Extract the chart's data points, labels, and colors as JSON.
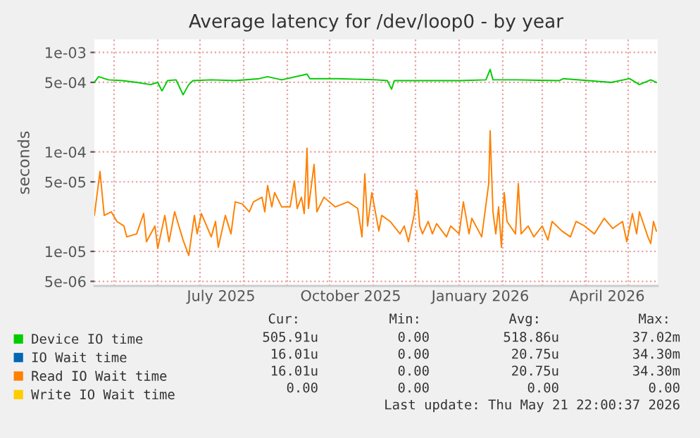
{
  "chart_data": {
    "type": "line",
    "title": "Average latency for /dev/loop0 - by year",
    "ylabel": "seconds",
    "log": "y",
    "grid": true,
    "legend": "bottom",
    "line_style": "solid",
    "marker": "none",
    "xlim": [
      "2025-04-17",
      "2026-05-22"
    ],
    "xticks": [
      {
        "value": "2025-05-01",
        "label": null
      },
      {
        "value": "2025-06-01",
        "label": null
      },
      {
        "value": "2025-07-01",
        "label": null
      },
      {
        "value": "2025-07-16",
        "label": "July 2025"
      },
      {
        "value": "2025-08-01",
        "label": null
      },
      {
        "value": "2025-09-01",
        "label": null
      },
      {
        "value": "2025-10-01",
        "label": null
      },
      {
        "value": "2025-10-16",
        "label": "October 2025"
      },
      {
        "value": "2025-11-01",
        "label": null
      },
      {
        "value": "2025-12-01",
        "label": null
      },
      {
        "value": "2026-01-01",
        "label": null
      },
      {
        "value": "2026-01-16",
        "label": "January 2026"
      },
      {
        "value": "2026-02-01",
        "label": null
      },
      {
        "value": "2026-03-01",
        "label": null
      },
      {
        "value": "2026-04-01",
        "label": null
      },
      {
        "value": "2026-04-16",
        "label": "April 2026"
      },
      {
        "value": "2026-05-01",
        "label": null
      }
    ],
    "ylim": [
      4.5e-06,
      0.00135
    ],
    "yticks": [
      {
        "value": 0.001,
        "label": "1e-03"
      },
      {
        "value": 0.0005,
        "label": "5e-04"
      },
      {
        "value": 0.0001,
        "label": "1e-04"
      },
      {
        "value": 5e-05,
        "label": "5e-05"
      },
      {
        "value": 1e-05,
        "label": "1e-05"
      },
      {
        "value": 5e-06,
        "label": "5e-06"
      }
    ],
    "series": [
      {
        "name": "Device IO time",
        "color": "#00cc00",
        "x": [
          "2025-04-17",
          "2025-04-20",
          "2025-04-27",
          "2025-05-07",
          "2025-05-17",
          "2025-05-27",
          "2025-06-01",
          "2025-06-04",
          "2025-06-08",
          "2025-06-14",
          "2025-06-19",
          "2025-06-23",
          "2025-06-26",
          "2025-07-09",
          "2025-07-26",
          "2025-08-12",
          "2025-08-18",
          "2025-08-28",
          "2025-09-15",
          "2025-09-17",
          "2025-10-07",
          "2025-11-03",
          "2025-11-11",
          "2025-11-14",
          "2025-11-16",
          "2025-12-06",
          "2026-01-02",
          "2026-01-20",
          "2026-01-23",
          "2026-01-25",
          "2026-02-11",
          "2026-03-13",
          "2026-03-16",
          "2026-04-19",
          "2026-05-02",
          "2026-05-09",
          "2026-05-17",
          "2026-05-21"
        ],
        "values": [
          0.0005,
          0.00057,
          0.00053,
          0.00052,
          0.0005,
          0.000475,
          0.0005,
          0.00041,
          0.00052,
          0.00053,
          0.000375,
          0.000475,
          0.00052,
          0.00053,
          0.00052,
          0.000545,
          0.00057,
          0.00053,
          0.000605,
          0.000545,
          0.000545,
          0.00053,
          0.00052,
          0.000427,
          0.00052,
          0.00052,
          0.00052,
          0.00053,
          0.000675,
          0.00053,
          0.00053,
          0.00052,
          0.000545,
          0.0005,
          0.000545,
          0.000475,
          0.00053,
          0.0005
        ]
      },
      {
        "name": "IO Wait time",
        "color": "#0066b3"
      },
      {
        "name": "Read IO Wait time",
        "color": "#ff8000",
        "x": [
          "2025-04-17",
          "2025-04-21",
          "2025-04-24",
          "2025-04-29",
          "2025-05-03",
          "2025-05-08",
          "2025-05-10",
          "2025-05-17",
          "2025-05-22",
          "2025-05-24",
          "2025-05-30",
          "2025-06-01",
          "2025-06-06",
          "2025-06-09",
          "2025-06-13",
          "2025-06-19",
          "2025-06-23",
          "2025-06-27",
          "2025-06-29",
          "2025-07-02",
          "2025-07-09",
          "2025-07-12",
          "2025-07-14",
          "2025-07-19",
          "2025-07-23",
          "2025-07-26",
          "2025-07-31",
          "2025-08-05",
          "2025-08-08",
          "2025-08-14",
          "2025-08-16",
          "2025-08-18",
          "2025-08-21",
          "2025-08-23",
          "2025-08-28",
          "2025-09-03",
          "2025-09-06",
          "2025-09-08",
          "2025-09-11",
          "2025-09-13",
          "2025-09-15",
          "2025-09-16",
          "2025-09-20",
          "2025-09-22",
          "2025-09-27",
          "2025-10-05",
          "2025-10-14",
          "2025-10-21",
          "2025-10-24",
          "2025-10-26",
          "2025-10-28",
          "2025-10-31",
          "2025-11-05",
          "2025-11-07",
          "2025-11-13",
          "2025-11-20",
          "2025-11-23",
          "2025-11-26",
          "2025-11-30",
          "2025-12-02",
          "2025-12-04",
          "2025-12-06",
          "2025-12-10",
          "2025-12-13",
          "2025-12-16",
          "2025-12-23",
          "2025-12-26",
          "2026-01-01",
          "2026-01-04",
          "2026-01-08",
          "2026-01-10",
          "2026-01-17",
          "2026-01-22",
          "2026-01-23",
          "2026-01-25",
          "2026-01-27",
          "2026-01-29",
          "2026-01-31",
          "2026-02-02",
          "2026-02-04",
          "2026-02-10",
          "2026-02-12",
          "2026-02-14",
          "2026-02-19",
          "2026-02-23",
          "2026-03-01",
          "2026-03-05",
          "2026-03-08",
          "2026-03-15",
          "2026-03-21",
          "2026-03-25",
          "2026-03-31",
          "2026-04-07",
          "2026-04-14",
          "2026-04-20",
          "2026-04-27",
          "2026-04-30",
          "2026-05-04",
          "2026-05-07",
          "2026-05-09",
          "2026-05-15",
          "2026-05-17",
          "2026-05-19",
          "2026-05-21"
        ],
        "values": [
          2.3e-05,
          6.35e-05,
          2.3e-05,
          2.5e-05,
          2e-05,
          1.8e-05,
          1.4e-05,
          1.5e-05,
          2.4e-05,
          1.25e-05,
          1.8e-05,
          1.07e-05,
          2.3e-05,
          1.25e-05,
          2.5e-05,
          1.3e-05,
          9.1e-06,
          2.3e-05,
          1.5e-05,
          2.4e-05,
          1.4e-05,
          2e-05,
          1.1e-05,
          2.3e-05,
          1.5e-05,
          3.15e-05,
          3e-05,
          2.5e-05,
          3.15e-05,
          3.5e-05,
          2.5e-05,
          4.6e-05,
          2.8e-05,
          3.9e-05,
          2.8e-05,
          2.8e-05,
          5.1e-05,
          2.7e-05,
          3.5e-05,
          2.4e-05,
          0.000109,
          2.7e-05,
          7.5e-05,
          2.5e-05,
          3.5e-05,
          2.8e-05,
          3.15e-05,
          2.7e-05,
          1.4e-05,
          6e-05,
          1.8e-05,
          3.9e-05,
          1.6e-05,
          2.3e-05,
          2e-05,
          1.5e-05,
          1.8e-05,
          1.25e-05,
          2.3e-05,
          4.1e-05,
          1.8e-05,
          1.5e-05,
          2e-05,
          1.5e-05,
          1.9e-05,
          1.4e-05,
          1.8e-05,
          1.5e-05,
          3.15e-05,
          1.5e-05,
          2.15e-05,
          1.4e-05,
          4.8e-05,
          0.000163,
          2.5e-05,
          1.5e-05,
          2.8e-05,
          1.1e-05,
          3.9e-05,
          2e-05,
          1.5e-05,
          4.8e-05,
          1.5e-05,
          1.8e-05,
          1.4e-05,
          1.8e-05,
          1.3e-05,
          2e-05,
          1.6e-05,
          1.4e-05,
          2e-05,
          1.8e-05,
          1.5e-05,
          2.15e-05,
          1.7e-05,
          2e-05,
          1.25e-05,
          2.4e-05,
          1.5e-05,
          2.5e-05,
          1.4e-05,
          1.2e-05,
          2e-05,
          1.6e-05
        ]
      },
      {
        "name": "Write IO Wait time",
        "color": "#ffcc00"
      }
    ],
    "annotations": [
      "Cur:",
      "Min:",
      "Avg:",
      "Max:",
      "505.91u",
      "0.00",
      "518.86u",
      "37.02m",
      "16.01u",
      "0.00",
      "20.75u",
      "34.30m",
      "16.01u",
      "0.00",
      "20.75u",
      "34.30m",
      "0.00",
      "0.00",
      "0.00",
      "0.00",
      "Last update: Thu May 21 22:00:37 2026"
    ]
  }
}
